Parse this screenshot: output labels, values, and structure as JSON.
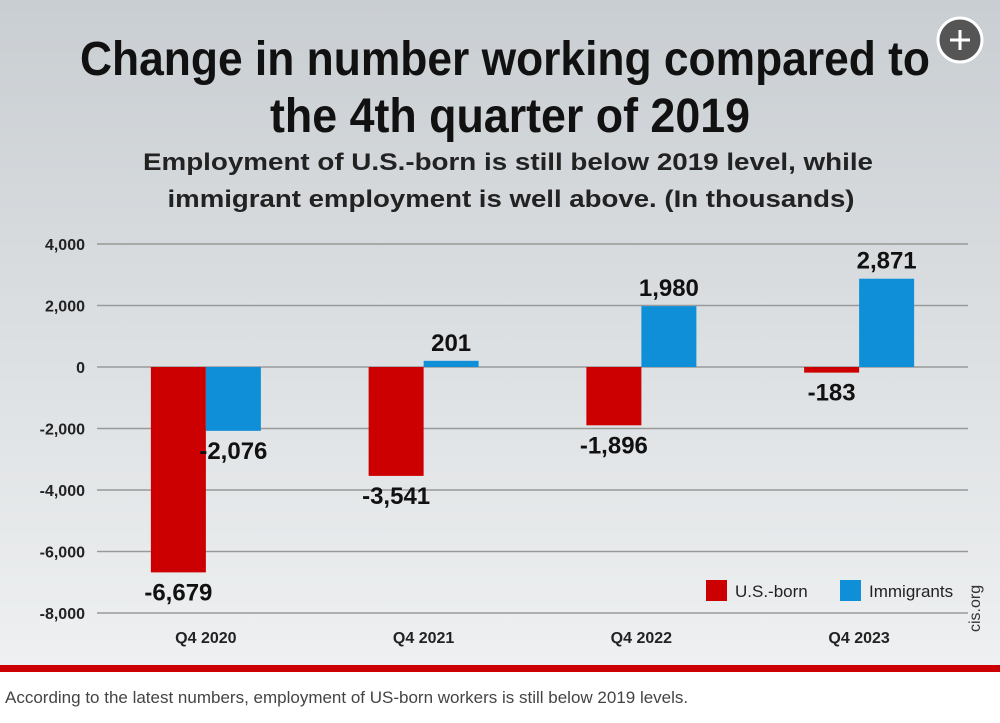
{
  "chart_data": {
    "type": "bar",
    "title": [
      "Change in number working compared to",
      "the 4th quarter of 2019"
    ],
    "subtitle": [
      "Employment of U.S.-born is still below 2019 level, while",
      "immigrant employment is well above. (In thousands)"
    ],
    "categories": [
      "Q4 2020",
      "Q4 2021",
      "Q4 2022",
      "Q4 2023"
    ],
    "series": [
      {
        "name": "U.S.-born",
        "color": "#cc0000",
        "values": [
          -6679,
          -3541,
          -1896,
          -183
        ],
        "value_labels": [
          "-6,679",
          "-3,541",
          "-1,896",
          "-183"
        ]
      },
      {
        "name": "Immigrants",
        "color": "#0f8fd8",
        "values": [
          -2076,
          201,
          1980,
          2871
        ],
        "value_labels": [
          "-2,076",
          "201",
          "1,980",
          "2,871"
        ]
      }
    ],
    "ylim": [
      -8000,
      4000
    ],
    "yticks": [
      {
        "value": -8000,
        "label": "-8,000"
      },
      {
        "value": -6000,
        "label": "-6,000"
      },
      {
        "value": -4000,
        "label": "-4,000"
      },
      {
        "value": -2000,
        "label": "-2,000"
      },
      0,
      {
        "value": 2000,
        "label": "2,000"
      },
      {
        "value": 4000,
        "label": "4,000"
      }
    ],
    "grid": true,
    "legend": "lower right",
    "source": "cis.org"
  },
  "caption": "According to the latest numbers, employment of US-born workers is still below 2019 levels."
}
